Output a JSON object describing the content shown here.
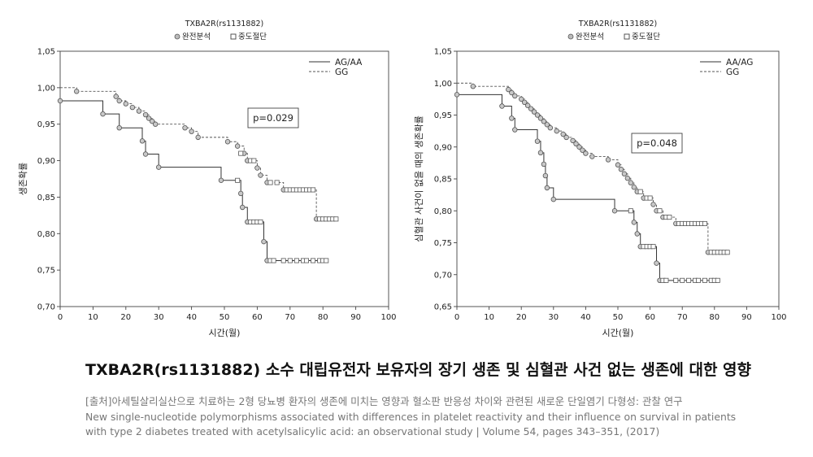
{
  "chart_data": [
    {
      "type": "line",
      "subtype": "kaplan-meier",
      "title": "TXBA2R(rs1131882)",
      "censor_legend": [
        "완전분석",
        "중도절단"
      ],
      "xlabel": "시간(월)",
      "ylabel": "생존확률",
      "xlim": [
        0,
        100
      ],
      "ylim": [
        0.7,
        1.05
      ],
      "xticks": [
        "0",
        "10",
        "20",
        "30",
        "40",
        "50",
        "60",
        "70",
        "80",
        "90",
        "100"
      ],
      "yticks": [
        "0,70",
        "0,75",
        "0,80",
        "0,85",
        "0,90",
        "0,95",
        "1,00",
        "1,05"
      ],
      "grid": false,
      "legend_position": "top-right",
      "annotation": "p=0.029",
      "series": [
        {
          "name": "AG/AA",
          "style": "solid",
          "steps": [
            [
              0,
              0.982
            ],
            [
              13,
              0.964
            ],
            [
              18,
              0.945
            ],
            [
              25,
              0.927
            ],
            [
              26,
              0.909
            ],
            [
              30,
              0.891
            ],
            [
              49,
              0.873
            ],
            [
              55,
              0.855
            ],
            [
              55.5,
              0.836
            ],
            [
              57,
              0.816
            ],
            [
              62,
              0.789
            ],
            [
              63,
              0.763
            ],
            [
              81,
              0.763
            ]
          ],
          "complete": [
            [
              0,
              0.982
            ],
            [
              13,
              0.964
            ],
            [
              18,
              0.945
            ],
            [
              25,
              0.927
            ],
            [
              26,
              0.909
            ],
            [
              30,
              0.891
            ],
            [
              49,
              0.873
            ],
            [
              55,
              0.855
            ],
            [
              55.5,
              0.836
            ],
            [
              57,
              0.816
            ],
            [
              62,
              0.789
            ],
            [
              63,
              0.763
            ]
          ],
          "censored": [
            [
              54,
              0.873
            ],
            [
              58,
              0.816
            ],
            [
              59,
              0.816
            ],
            [
              60,
              0.816
            ],
            [
              61,
              0.816
            ],
            [
              64,
              0.763
            ],
            [
              65,
              0.763
            ],
            [
              68,
              0.763
            ],
            [
              70,
              0.763
            ],
            [
              72,
              0.763
            ],
            [
              74,
              0.763
            ],
            [
              75,
              0.763
            ],
            [
              77,
              0.763
            ],
            [
              79,
              0.763
            ],
            [
              80,
              0.763
            ],
            [
              81,
              0.763
            ]
          ]
        },
        {
          "name": "GG",
          "style": "dashed",
          "steps": [
            [
              0,
              1.0
            ],
            [
              5,
              0.995
            ],
            [
              17,
              0.988
            ],
            [
              18,
              0.982
            ],
            [
              20,
              0.978
            ],
            [
              22,
              0.973
            ],
            [
              24,
              0.968
            ],
            [
              26,
              0.963
            ],
            [
              27,
              0.958
            ],
            [
              28,
              0.954
            ],
            [
              29,
              0.95
            ],
            [
              38,
              0.945
            ],
            [
              40,
              0.94
            ],
            [
              42,
              0.932
            ],
            [
              51,
              0.926
            ],
            [
              54,
              0.92
            ],
            [
              56,
              0.91
            ],
            [
              57,
              0.9
            ],
            [
              60,
              0.89
            ],
            [
              61,
              0.88
            ],
            [
              63,
              0.87
            ],
            [
              68,
              0.86
            ],
            [
              78,
              0.82
            ],
            [
              84,
              0.82
            ]
          ],
          "complete": [
            [
              5,
              0.995
            ],
            [
              17,
              0.988
            ],
            [
              18,
              0.982
            ],
            [
              20,
              0.978
            ],
            [
              22,
              0.973
            ],
            [
              24,
              0.968
            ],
            [
              26,
              0.963
            ],
            [
              27,
              0.958
            ],
            [
              28,
              0.954
            ],
            [
              29,
              0.95
            ],
            [
              38,
              0.945
            ],
            [
              40,
              0.94
            ],
            [
              42,
              0.932
            ],
            [
              51,
              0.926
            ],
            [
              54,
              0.92
            ],
            [
              56,
              0.91
            ],
            [
              57,
              0.9
            ],
            [
              60,
              0.89
            ],
            [
              61,
              0.88
            ],
            [
              63,
              0.87
            ],
            [
              68,
              0.86
            ],
            [
              78,
              0.82
            ]
          ],
          "censored": [
            [
              55,
              0.91
            ],
            [
              58,
              0.9
            ],
            [
              59,
              0.9
            ],
            [
              64,
              0.87
            ],
            [
              66,
              0.87
            ],
            [
              69,
              0.86
            ],
            [
              70,
              0.86
            ],
            [
              71,
              0.86
            ],
            [
              72,
              0.86
            ],
            [
              73,
              0.86
            ],
            [
              74,
              0.86
            ],
            [
              75,
              0.86
            ],
            [
              76,
              0.86
            ],
            [
              77,
              0.86
            ],
            [
              79,
              0.82
            ],
            [
              80,
              0.82
            ],
            [
              81,
              0.82
            ],
            [
              82,
              0.82
            ],
            [
              83,
              0.82
            ],
            [
              84,
              0.82
            ]
          ]
        }
      ]
    },
    {
      "type": "line",
      "subtype": "kaplan-meier",
      "title": "TXBA2R(rs1131882)",
      "censor_legend": [
        "완전분석",
        "중도절단"
      ],
      "xlabel": "시간(월)",
      "ylabel": "심혈관 사건이 없을 때의 생존확률",
      "xlim": [
        0,
        100
      ],
      "ylim": [
        0.65,
        1.05
      ],
      "xticks": [
        "0",
        "10",
        "20",
        "30",
        "40",
        "50",
        "60",
        "70",
        "80",
        "90",
        "100"
      ],
      "yticks": [
        "0,65",
        "0,70",
        "0,75",
        "0,80",
        "0,85",
        "0,90",
        "0,95",
        "1,00",
        "1,05"
      ],
      "grid": false,
      "legend_position": "top-right",
      "annotation": "p=0.048",
      "series": [
        {
          "name": "AA/AG",
          "style": "solid",
          "steps": [
            [
              0,
              0.982
            ],
            [
              14,
              0.964
            ],
            [
              17,
              0.945
            ],
            [
              18,
              0.927
            ],
            [
              25,
              0.909
            ],
            [
              26,
              0.891
            ],
            [
              27,
              0.873
            ],
            [
              27.5,
              0.855
            ],
            [
              28,
              0.836
            ],
            [
              30,
              0.818
            ],
            [
              49,
              0.8
            ],
            [
              55,
              0.782
            ],
            [
              56,
              0.764
            ],
            [
              57,
              0.744
            ],
            [
              62,
              0.718
            ],
            [
              63,
              0.691
            ],
            [
              81,
              0.691
            ]
          ],
          "complete": [
            [
              0,
              0.982
            ],
            [
              14,
              0.964
            ],
            [
              17,
              0.945
            ],
            [
              18,
              0.927
            ],
            [
              25,
              0.909
            ],
            [
              26,
              0.891
            ],
            [
              27,
              0.873
            ],
            [
              27.5,
              0.855
            ],
            [
              28,
              0.836
            ],
            [
              30,
              0.818
            ],
            [
              49,
              0.8
            ],
            [
              55,
              0.782
            ],
            [
              56,
              0.764
            ],
            [
              57,
              0.744
            ],
            [
              62,
              0.718
            ],
            [
              63,
              0.691
            ]
          ],
          "censored": [
            [
              54,
              0.8
            ],
            [
              58,
              0.744
            ],
            [
              59,
              0.744
            ],
            [
              60,
              0.744
            ],
            [
              61,
              0.744
            ],
            [
              64,
              0.691
            ],
            [
              65,
              0.691
            ],
            [
              68,
              0.691
            ],
            [
              70,
              0.691
            ],
            [
              72,
              0.691
            ],
            [
              74,
              0.691
            ],
            [
              75,
              0.691
            ],
            [
              77,
              0.691
            ],
            [
              79,
              0.691
            ],
            [
              80,
              0.691
            ],
            [
              81,
              0.691
            ]
          ]
        },
        {
          "name": "GG",
          "style": "dashed",
          "steps": [
            [
              0,
              1.0
            ],
            [
              5,
              0.995
            ],
            [
              16,
              0.99
            ],
            [
              17,
              0.985
            ],
            [
              18,
              0.98
            ],
            [
              20,
              0.975
            ],
            [
              21,
              0.97
            ],
            [
              22,
              0.965
            ],
            [
              23,
              0.96
            ],
            [
              24,
              0.955
            ],
            [
              25,
              0.95
            ],
            [
              26,
              0.945
            ],
            [
              27,
              0.94
            ],
            [
              28,
              0.935
            ],
            [
              29,
              0.93
            ],
            [
              31,
              0.925
            ],
            [
              33,
              0.92
            ],
            [
              34,
              0.915
            ],
            [
              36,
              0.91
            ],
            [
              37,
              0.905
            ],
            [
              38,
              0.9
            ],
            [
              39,
              0.895
            ],
            [
              40,
              0.89
            ],
            [
              42,
              0.885
            ],
            [
              47,
              0.88
            ],
            [
              50,
              0.872
            ],
            [
              51,
              0.865
            ],
            [
              52,
              0.858
            ],
            [
              53,
              0.851
            ],
            [
              54,
              0.844
            ],
            [
              55,
              0.837
            ],
            [
              56,
              0.83
            ],
            [
              58,
              0.82
            ],
            [
              61,
              0.81
            ],
            [
              62,
              0.8
            ],
            [
              64,
              0.79
            ],
            [
              68,
              0.78
            ],
            [
              78,
              0.735
            ],
            [
              84,
              0.735
            ]
          ],
          "complete": [
            [
              5,
              0.995
            ],
            [
              16,
              0.99
            ],
            [
              17,
              0.985
            ],
            [
              18,
              0.98
            ],
            [
              20,
              0.975
            ],
            [
              21,
              0.97
            ],
            [
              22,
              0.965
            ],
            [
              23,
              0.96
            ],
            [
              24,
              0.955
            ],
            [
              25,
              0.95
            ],
            [
              26,
              0.945
            ],
            [
              27,
              0.94
            ],
            [
              28,
              0.935
            ],
            [
              29,
              0.93
            ],
            [
              31,
              0.925
            ],
            [
              33,
              0.92
            ],
            [
              34,
              0.915
            ],
            [
              36,
              0.91
            ],
            [
              37,
              0.905
            ],
            [
              38,
              0.9
            ],
            [
              39,
              0.895
            ],
            [
              40,
              0.89
            ],
            [
              42,
              0.885
            ],
            [
              47,
              0.88
            ],
            [
              50,
              0.872
            ],
            [
              51,
              0.865
            ],
            [
              52,
              0.858
            ],
            [
              53,
              0.851
            ],
            [
              54,
              0.844
            ],
            [
              55,
              0.837
            ],
            [
              56,
              0.83
            ],
            [
              58,
              0.82
            ],
            [
              61,
              0.81
            ],
            [
              62,
              0.8
            ],
            [
              64,
              0.79
            ],
            [
              68,
              0.78
            ],
            [
              78,
              0.735
            ]
          ],
          "censored": [
            [
              57,
              0.83
            ],
            [
              59,
              0.82
            ],
            [
              60,
              0.82
            ],
            [
              63,
              0.8
            ],
            [
              65,
              0.79
            ],
            [
              66,
              0.79
            ],
            [
              69,
              0.78
            ],
            [
              70,
              0.78
            ],
            [
              71,
              0.78
            ],
            [
              72,
              0.78
            ],
            [
              73,
              0.78
            ],
            [
              74,
              0.78
            ],
            [
              75,
              0.78
            ],
            [
              76,
              0.78
            ],
            [
              77,
              0.78
            ],
            [
              79,
              0.735
            ],
            [
              80,
              0.735
            ],
            [
              81,
              0.735
            ],
            [
              82,
              0.735
            ],
            [
              83,
              0.735
            ],
            [
              84,
              0.735
            ]
          ]
        }
      ]
    }
  ],
  "caption": {
    "title": "TXBA2R(rs1131882) 소수 대립유전자 보유자의 장기 생존 및 심혈관 사건 없는 생존에 대한 영향",
    "source_lines": [
      "[출처]아세틸살리실산으로 치료하는 2형 당뇨병 환자의 생존에 미치는 영향과 혈소판 반응성 차이와 관련된 새로운 단일염기 다형성: 관찰 연구",
      "New single-nucleotide polymorphisms associated with differences in platelet reactivity and their influence on survival in patients",
      "with type 2 diabetes treated with acetylsalicylic acid: an observational study | Volume 54, pages 343–351, (2017)"
    ]
  }
}
